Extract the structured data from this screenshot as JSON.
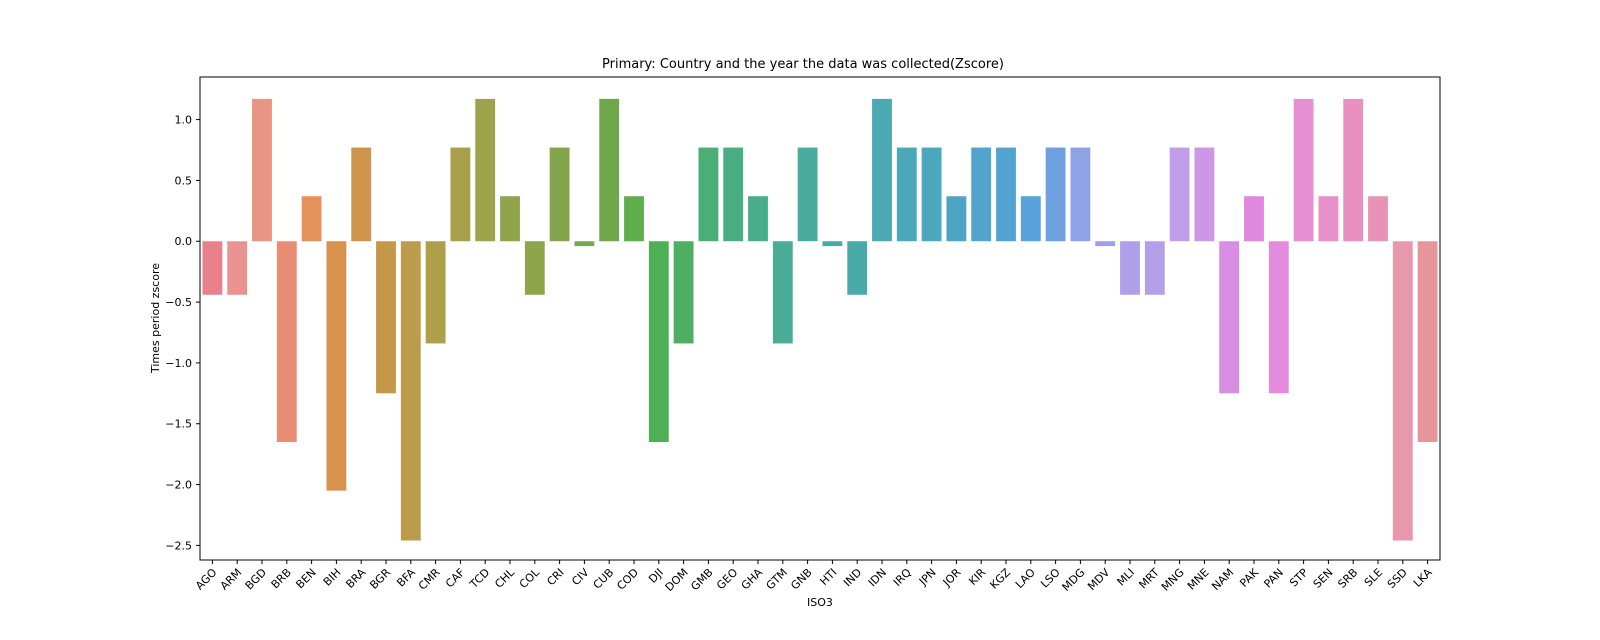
{
  "chart_data": {
    "type": "bar",
    "title": "Primary: Country and the year the data was collected(Zscore)",
    "xlabel": "ISO3",
    "ylabel": "Times period zscore",
    "ylim": [
      -2.62,
      1.35
    ],
    "yticks": [
      -2.5,
      -2.0,
      -1.5,
      -1.0,
      -0.5,
      0.0,
      0.5,
      1.0
    ],
    "ytick_labels": [
      "−2.5",
      "−2.0",
      "−1.5",
      "−1.0",
      "−0.5",
      "0.0",
      "0.5",
      "1.0"
    ],
    "grid": false,
    "legend": "none",
    "categories": [
      "AGO",
      "ARM",
      "BGD",
      "BRB",
      "BEN",
      "BIH",
      "BRA",
      "BGR",
      "BFA",
      "CMR",
      "CAF",
      "TCD",
      "CHL",
      "COL",
      "CRI",
      "CIV",
      "CUB",
      "COD",
      "DJI",
      "DOM",
      "GMB",
      "GEO",
      "GHA",
      "GTM",
      "GNB",
      "HTI",
      "IND",
      "IDN",
      "IRQ",
      "JPN",
      "JOR",
      "KIR",
      "KGZ",
      "LAO",
      "LSO",
      "MDG",
      "MDV",
      "MLI",
      "MRT",
      "MNG",
      "MNE",
      "NAM",
      "PAK",
      "PAN",
      "STP",
      "SEN",
      "SRB",
      "SLE",
      "SSD",
      "LKA"
    ],
    "values": [
      -0.44,
      -0.44,
      1.17,
      -1.65,
      0.37,
      -2.05,
      0.77,
      -1.25,
      -2.46,
      -0.84,
      0.77,
      1.17,
      0.37,
      -0.44,
      0.77,
      -0.04,
      1.17,
      0.37,
      -1.65,
      -0.84,
      0.77,
      0.77,
      0.37,
      -0.84,
      0.77,
      -0.04,
      -0.44,
      1.17,
      0.77,
      0.77,
      0.37,
      0.77,
      0.77,
      0.37,
      0.77,
      0.77,
      -0.04,
      -0.44,
      -0.44,
      0.77,
      0.77,
      -1.25,
      0.37,
      -1.25,
      1.17,
      0.37,
      1.17,
      0.37,
      -2.46,
      -1.65
    ],
    "colors": [
      "#e8818a",
      "#ea928f",
      "#e99583",
      "#e98c74",
      "#e5925a",
      "#d9924e",
      "#cf944c",
      "#c49848",
      "#bb9c4c",
      "#ae9f4b",
      "#a7a04b",
      "#9da34b",
      "#90a44b",
      "#8ea54b",
      "#82a54b",
      "#76a94c",
      "#6fa84b",
      "#5fae4c",
      "#4faf55",
      "#4eae62",
      "#4aae76",
      "#49ad83",
      "#49ad8b",
      "#48ac96",
      "#49ac9f",
      "#4aaba6",
      "#4aaaaa",
      "#4aa9b1",
      "#4ba8b8",
      "#4ba7bc",
      "#4ca5c3",
      "#51a4cb",
      "#53a3d2",
      "#58a1da",
      "#6e9fdf",
      "#8da3e5",
      "#9d9fe8",
      "#ad9fe8",
      "#b39ee8",
      "#c09ee9",
      "#cc97e5",
      "#d68de2",
      "#e087e0",
      "#e38bdc",
      "#e68fd2",
      "#e98fc9",
      "#e990c2",
      "#e992b8",
      "#e898ad",
      "#e8949b"
    ]
  }
}
